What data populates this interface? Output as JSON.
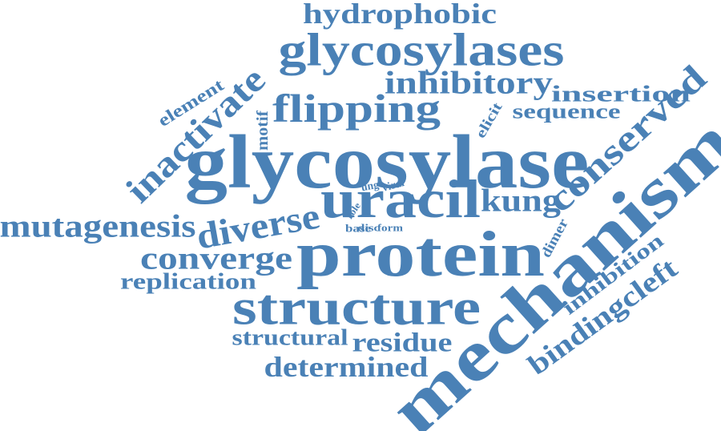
{
  "words": [
    "hydrophobic",
    "glycosylases",
    "inhibitory",
    "insertion",
    "sequence",
    "conserved",
    "flipping",
    "motif",
    "element",
    "inactivate",
    "elicit",
    "glycosylase",
    "uracil",
    "kung",
    "ung",
    "viral",
    "role",
    "disc",
    "form",
    "base",
    "mutagenesis",
    "diverse",
    "protein",
    "converge",
    "replication",
    "dimer",
    "mechanism",
    "inhibition",
    "bindingcleft",
    "structure",
    "structural",
    "residue",
    "determined"
  ]
}
